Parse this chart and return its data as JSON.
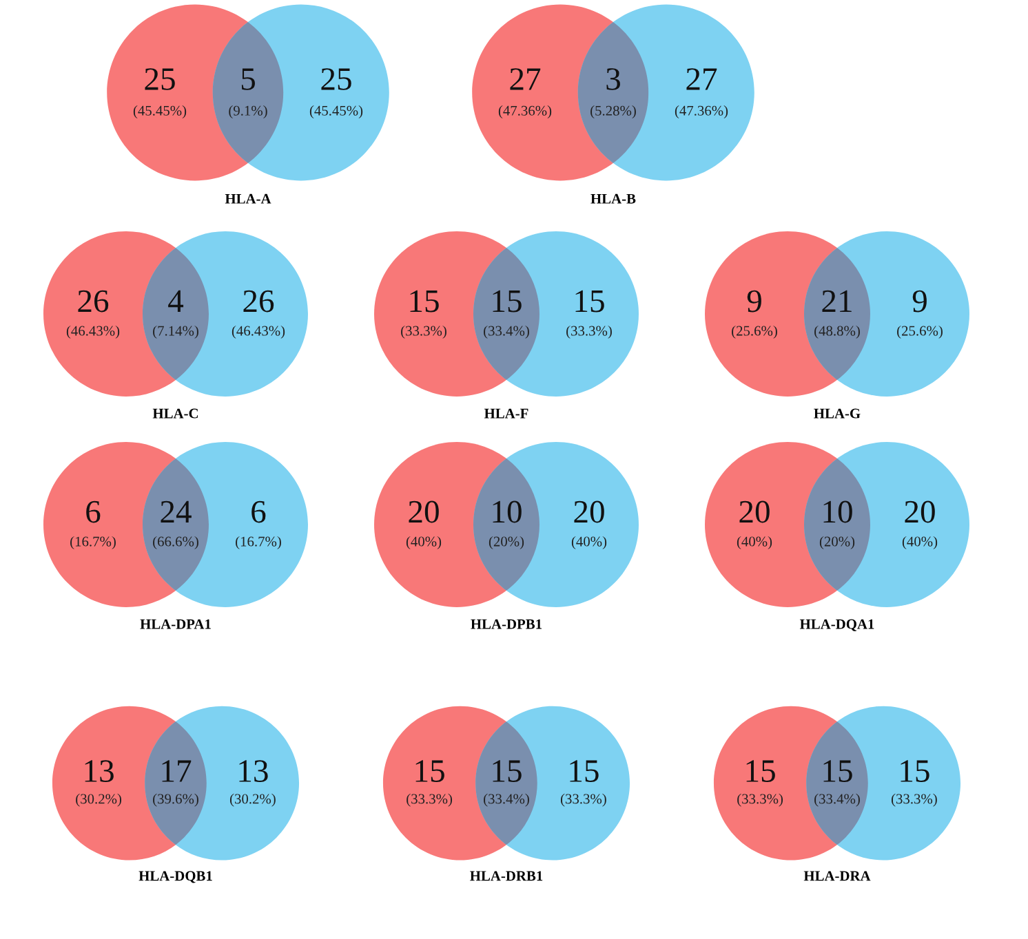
{
  "chart_data": [
    {
      "type": "other",
      "title": "HLA-A",
      "values": [
        25,
        5,
        25
      ],
      "data_labels": true,
      "annotations": [
        "(45.45%)",
        "(9.1%)",
        "(45.45%)"
      ],
      "colors": [
        "#f87878",
        "#7a8fae",
        "#7ed2f2"
      ]
    },
    {
      "type": "other",
      "title": "HLA-B",
      "values": [
        27,
        3,
        27
      ],
      "data_labels": true,
      "annotations": [
        "(47.36%)",
        "(5.28%)",
        "(47.36%)"
      ],
      "colors": [
        "#f87878",
        "#7a8fae",
        "#7ed2f2"
      ]
    },
    {
      "type": "other",
      "title": "HLA-C",
      "values": [
        26,
        4,
        26
      ],
      "data_labels": true,
      "annotations": [
        "(46.43%)",
        "(7.14%)",
        "(46.43%)"
      ],
      "colors": [
        "#f87878",
        "#7a8fae",
        "#7ed2f2"
      ]
    },
    {
      "type": "other",
      "title": "HLA-F",
      "values": [
        15,
        15,
        15
      ],
      "data_labels": true,
      "annotations": [
        "(33.3%)",
        "(33.4%)",
        "(33.3%)"
      ],
      "colors": [
        "#f87878",
        "#7a8fae",
        "#7ed2f2"
      ]
    },
    {
      "type": "other",
      "title": "HLA-G",
      "values": [
        9,
        21,
        9
      ],
      "data_labels": true,
      "annotations": [
        "(25.6%)",
        "(48.8%)",
        "(25.6%)"
      ],
      "colors": [
        "#f87878",
        "#7a8fae",
        "#7ed2f2"
      ]
    },
    {
      "type": "other",
      "title": "HLA-DPA1",
      "values": [
        6,
        24,
        6
      ],
      "data_labels": true,
      "annotations": [
        "(16.7%)",
        "(66.6%)",
        "(16.7%)"
      ],
      "colors": [
        "#f87878",
        "#7a8fae",
        "#7ed2f2"
      ]
    },
    {
      "type": "other",
      "title": "HLA-DPB1",
      "values": [
        20,
        10,
        20
      ],
      "data_labels": true,
      "annotations": [
        "(40%)",
        "(20%)",
        "(40%)"
      ],
      "colors": [
        "#f87878",
        "#7a8fae",
        "#7ed2f2"
      ]
    },
    {
      "type": "other",
      "title": "HLA-DQA1",
      "values": [
        20,
        10,
        20
      ],
      "data_labels": true,
      "annotations": [
        "(40%)",
        "(20%)",
        "(40%)"
      ],
      "colors": [
        "#f87878",
        "#7a8fae",
        "#7ed2f2"
      ]
    },
    {
      "type": "other",
      "title": "HLA-DQB1",
      "values": [
        13,
        17,
        13
      ],
      "data_labels": true,
      "annotations": [
        "(30.2%)",
        "(39.6%)",
        "(30.2%)"
      ],
      "colors": [
        "#f87878",
        "#7a8fae",
        "#7ed2f2"
      ]
    },
    {
      "type": "other",
      "title": "HLA-DRB1",
      "values": [
        15,
        15,
        15
      ],
      "data_labels": true,
      "annotations": [
        "(33.3%)",
        "(33.4%)",
        "(33.3%)"
      ],
      "colors": [
        "#f87878",
        "#7a8fae",
        "#7ed2f2"
      ]
    },
    {
      "type": "other",
      "title": "HLA-DRA",
      "values": [
        15,
        15,
        15
      ],
      "data_labels": true,
      "annotations": [
        "(33.3%)",
        "(33.4%)",
        "(33.3%)"
      ],
      "colors": [
        "#f87878",
        "#7a8fae",
        "#7ed2f2"
      ]
    }
  ]
}
